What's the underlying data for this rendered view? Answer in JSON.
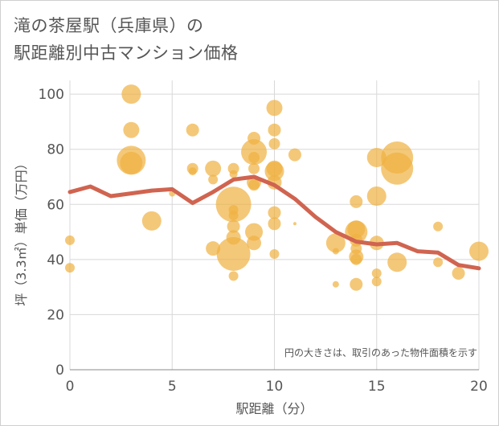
{
  "chart_data": {
    "type": "scatter",
    "title_line1": "滝の茶屋駅（兵庫県）の",
    "title_line2": "駅距離別中古マンション価格",
    "xlabel": "駅距離（分）",
    "ylabel": "坪（3.3㎡）単価（万円）",
    "note": "円の大きさは、取引のあった物件面積を示す",
    "xlim": [
      0,
      20
    ],
    "ylim": [
      0,
      105
    ],
    "x_ticks": [
      "0",
      "5",
      "10",
      "15",
      "20"
    ],
    "y_ticks": [
      "0",
      "20",
      "40",
      "60",
      "80",
      "100"
    ],
    "grid": true,
    "colors": {
      "bubble": "#f0b040",
      "line": "#d06450"
    },
    "bubbles": [
      {
        "x": 0,
        "y": 47,
        "s": 6
      },
      {
        "x": 0,
        "y": 37,
        "s": 6
      },
      {
        "x": 3,
        "y": 100,
        "s": 12
      },
      {
        "x": 3,
        "y": 87,
        "s": 10
      },
      {
        "x": 3,
        "y": 76,
        "s": 18
      },
      {
        "x": 3,
        "y": 75,
        "s": 14
      },
      {
        "x": 4,
        "y": 54,
        "s": 12
      },
      {
        "x": 5,
        "y": 64,
        "s": 4
      },
      {
        "x": 6,
        "y": 87,
        "s": 8
      },
      {
        "x": 6,
        "y": 73,
        "s": 7
      },
      {
        "x": 6,
        "y": 72,
        "s": 5
      },
      {
        "x": 7,
        "y": 73,
        "s": 10
      },
      {
        "x": 7,
        "y": 69,
        "s": 6
      },
      {
        "x": 7,
        "y": 44,
        "s": 9
      },
      {
        "x": 8,
        "y": 73,
        "s": 7
      },
      {
        "x": 8,
        "y": 71,
        "s": 5
      },
      {
        "x": 8,
        "y": 60,
        "s": 22
      },
      {
        "x": 8,
        "y": 58,
        "s": 6
      },
      {
        "x": 8,
        "y": 56,
        "s": 6
      },
      {
        "x": 8,
        "y": 52,
        "s": 8
      },
      {
        "x": 8,
        "y": 48,
        "s": 9
      },
      {
        "x": 8,
        "y": 42,
        "s": 21
      },
      {
        "x": 8,
        "y": 34,
        "s": 6
      },
      {
        "x": 9,
        "y": 84,
        "s": 8
      },
      {
        "x": 9,
        "y": 79,
        "s": 16
      },
      {
        "x": 9,
        "y": 77,
        "s": 7
      },
      {
        "x": 9,
        "y": 73,
        "s": 7
      },
      {
        "x": 9,
        "y": 68,
        "s": 9
      },
      {
        "x": 9,
        "y": 67,
        "s": 7
      },
      {
        "x": 9,
        "y": 50,
        "s": 11
      },
      {
        "x": 9,
        "y": 46,
        "s": 9
      },
      {
        "x": 10,
        "y": 95,
        "s": 10
      },
      {
        "x": 10,
        "y": 87,
        "s": 8
      },
      {
        "x": 10,
        "y": 82,
        "s": 7
      },
      {
        "x": 10,
        "y": 73,
        "s": 10
      },
      {
        "x": 10,
        "y": 72,
        "s": 12
      },
      {
        "x": 10,
        "y": 68,
        "s": 9
      },
      {
        "x": 10,
        "y": 57,
        "s": 8
      },
      {
        "x": 10,
        "y": 53,
        "s": 8
      },
      {
        "x": 10,
        "y": 42,
        "s": 6
      },
      {
        "x": 11,
        "y": 78,
        "s": 8
      },
      {
        "x": 11,
        "y": 53,
        "s": 2
      },
      {
        "x": 13,
        "y": 46,
        "s": 12
      },
      {
        "x": 13,
        "y": 43,
        "s": 4
      },
      {
        "x": 13,
        "y": 31,
        "s": 4
      },
      {
        "x": 14,
        "y": 61,
        "s": 8
      },
      {
        "x": 14,
        "y": 51,
        "s": 11
      },
      {
        "x": 14,
        "y": 50,
        "s": 14
      },
      {
        "x": 14,
        "y": 47,
        "s": 8
      },
      {
        "x": 14,
        "y": 44,
        "s": 7
      },
      {
        "x": 14,
        "y": 41,
        "s": 9
      },
      {
        "x": 14,
        "y": 40,
        "s": 7
      },
      {
        "x": 14,
        "y": 31,
        "s": 8
      },
      {
        "x": 15,
        "y": 77,
        "s": 12
      },
      {
        "x": 15,
        "y": 63,
        "s": 12
      },
      {
        "x": 15,
        "y": 46,
        "s": 9
      },
      {
        "x": 15,
        "y": 35,
        "s": 6
      },
      {
        "x": 15,
        "y": 32,
        "s": 6
      },
      {
        "x": 16,
        "y": 77,
        "s": 20
      },
      {
        "x": 16,
        "y": 73,
        "s": 20
      },
      {
        "x": 16,
        "y": 39,
        "s": 12
      },
      {
        "x": 18,
        "y": 52,
        "s": 6
      },
      {
        "x": 18,
        "y": 39,
        "s": 6
      },
      {
        "x": 19,
        "y": 35,
        "s": 8
      },
      {
        "x": 20,
        "y": 43,
        "s": 12
      }
    ],
    "series": [
      {
        "x": [
          0,
          1,
          2,
          3,
          4,
          5,
          6,
          7,
          8,
          9,
          10,
          11,
          12,
          13,
          14,
          15,
          16,
          17,
          18,
          19,
          20
        ],
        "values": [
          64.5,
          66.5,
          63,
          64,
          65,
          65.5,
          60.5,
          64.5,
          69,
          70,
          67,
          62,
          55.5,
          50,
          46.5,
          45.5,
          46,
          43,
          42.5,
          38,
          36.8
        ]
      }
    ]
  }
}
